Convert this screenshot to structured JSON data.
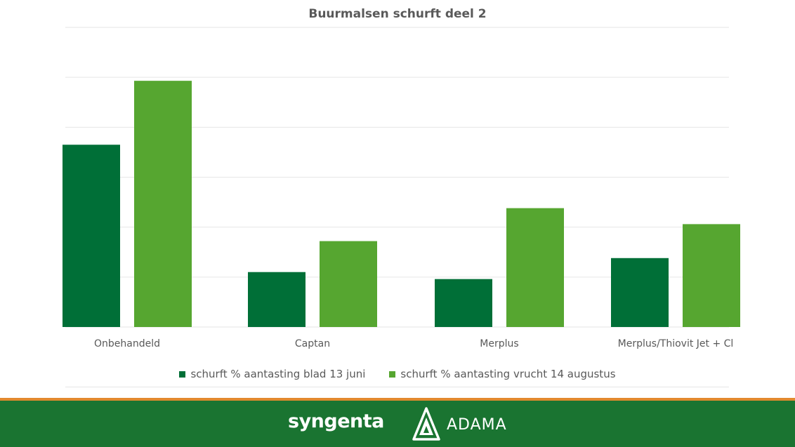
{
  "chart_data": {
    "type": "bar",
    "title": "Buurmalsen schurft deel 2",
    "categories": [
      "Onbehandeld",
      "Captan",
      "Merplus",
      "Merplus/Thiovit Jet + Cl"
    ],
    "series": [
      {
        "name": "schurft % aantasting blad 13 juni",
        "color": "#006f37",
        "values": [
          3.65,
          1.1,
          0.96,
          1.38
        ]
      },
      {
        "name": "schurft % aantasting vrucht 14 augustus",
        "color": "#56a630",
        "values": [
          4.93,
          1.72,
          2.38,
          2.06
        ]
      }
    ],
    "ylim": [
      0,
      6
    ],
    "grid": true,
    "legend_position": "bottom"
  },
  "footer": {
    "logo_syngenta": "syngenta",
    "logo_adama": "ADAMA",
    "background_color": "#1a7431",
    "accent_color": "#e1892e"
  }
}
